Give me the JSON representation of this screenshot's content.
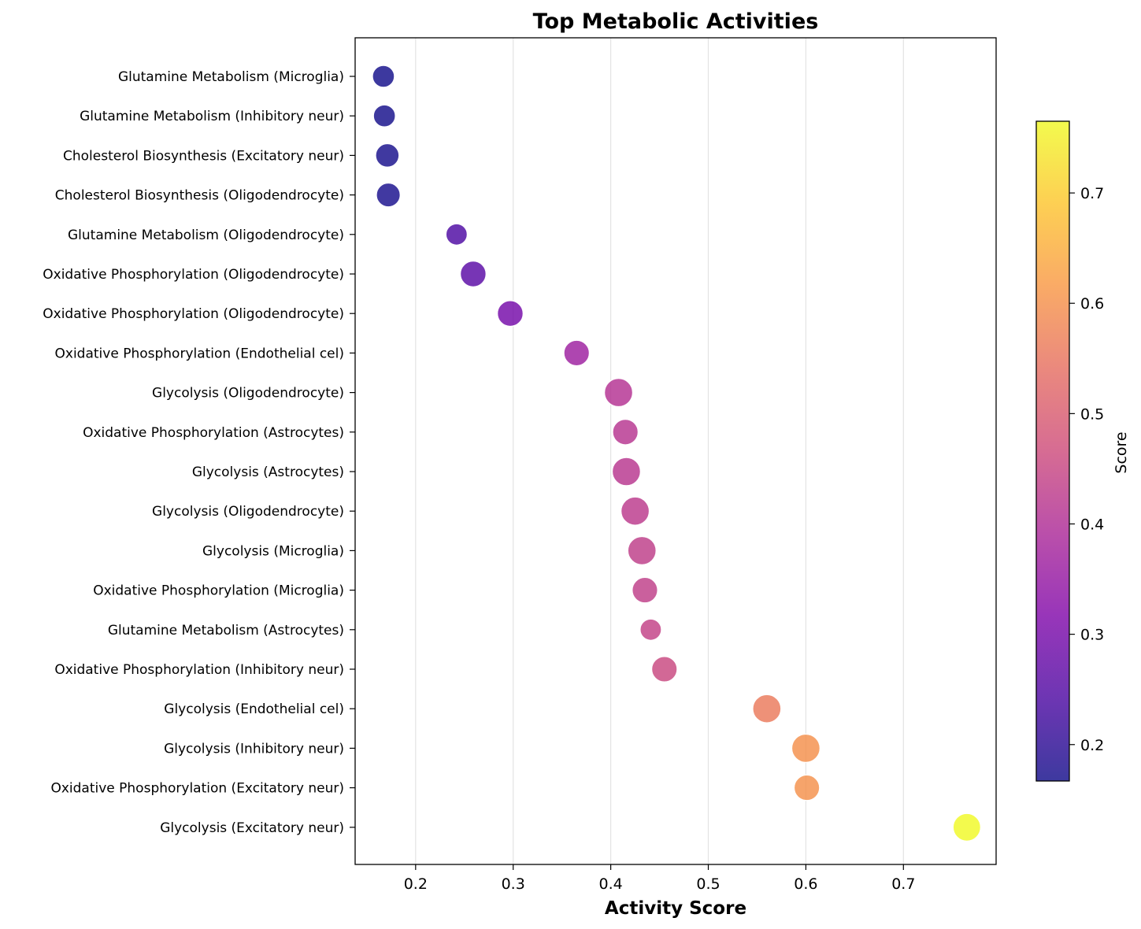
{
  "chart_data": {
    "type": "scatter",
    "title": "Top Metabolic Activities",
    "xlabel": "Activity Score",
    "ylabel": "",
    "xlim": [
      0.138,
      0.795
    ],
    "xticks": [
      "0.2",
      "0.3",
      "0.4",
      "0.5",
      "0.6",
      "0.7"
    ],
    "xtick_values": [
      0.2,
      0.3,
      0.4,
      0.5,
      0.6,
      0.7
    ],
    "grid": "vertical",
    "colormap": "plasma",
    "colorbar": {
      "label": "Score",
      "range": [
        0.167,
        0.765
      ],
      "ticks": [
        "0.2",
        "0.3",
        "0.4",
        "0.5",
        "0.6",
        "0.7"
      ],
      "tick_values": [
        0.2,
        0.3,
        0.4,
        0.5,
        0.6,
        0.7
      ]
    },
    "categories": [
      "Glutamine Metabolism (Microglia)",
      "Glutamine Metabolism (Inhibitory neur)",
      "Cholesterol Biosynthesis (Excitatory neur)",
      "Cholesterol Biosynthesis (Oligodendrocyte)",
      "Glutamine Metabolism (Oligodendrocyte)",
      "Oxidative Phosphorylation (Oligodendrocyte)",
      "Oxidative Phosphorylation (Oligodendrocyte)",
      "Oxidative Phosphorylation (Endothelial cel)",
      "Glycolysis (Oligodendrocyte)",
      "Oxidative Phosphorylation (Astrocytes)",
      "Glycolysis (Astrocytes)",
      "Glycolysis (Oligodendrocyte)",
      "Glycolysis (Microglia)",
      "Oxidative Phosphorylation (Microglia)",
      "Glutamine Metabolism (Astrocytes)",
      "Oxidative Phosphorylation (Inhibitory neur)",
      "Glycolysis (Endothelial cel)",
      "Glycolysis (Inhibitory neur)",
      "Oxidative Phosphorylation (Excitatory neur)",
      "Glycolysis (Excitatory neur)"
    ],
    "values": [
      0.167,
      0.168,
      0.171,
      0.172,
      0.242,
      0.259,
      0.297,
      0.365,
      0.408,
      0.415,
      0.416,
      0.425,
      0.432,
      0.435,
      0.441,
      0.455,
      0.56,
      0.6,
      0.601,
      0.765
    ],
    "sizes": [
      0.5,
      0.5,
      0.62,
      0.65,
      0.45,
      0.8,
      0.8,
      0.78,
      1.0,
      0.78,
      1.0,
      1.0,
      1.0,
      0.78,
      0.45,
      0.78,
      1.0,
      1.0,
      0.78,
      0.95
    ]
  }
}
